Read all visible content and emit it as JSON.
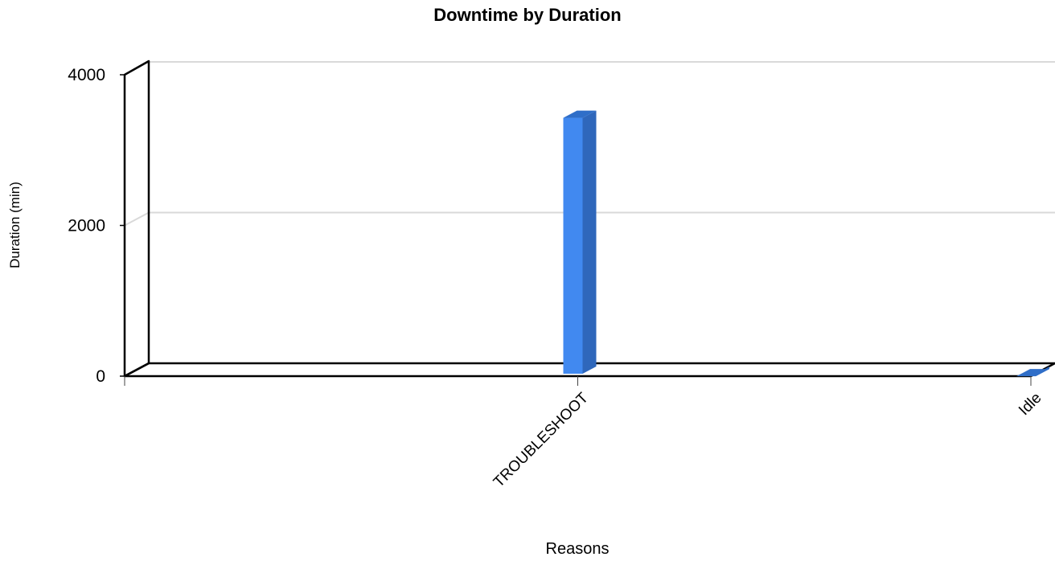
{
  "chart_data": {
    "type": "bar",
    "title": "Downtime by Duration",
    "xlabel": "Reasons",
    "ylabel": "Duration (min)",
    "categories": [
      "TROUBLESHOOT",
      "Idle"
    ],
    "series": [
      {
        "values": [
          3450,
          20
        ]
      }
    ],
    "ylim": [
      0,
      4000
    ],
    "yticks": [
      "0",
      "2000",
      "4000"
    ],
    "grid": true,
    "legend": "none",
    "colors": {
      "bar_front": "#4189f0",
      "bar_side": "#2f67bb",
      "bar_top": "#2f6ec8",
      "grid": "#d9d9d9",
      "axis": "#000000"
    }
  }
}
